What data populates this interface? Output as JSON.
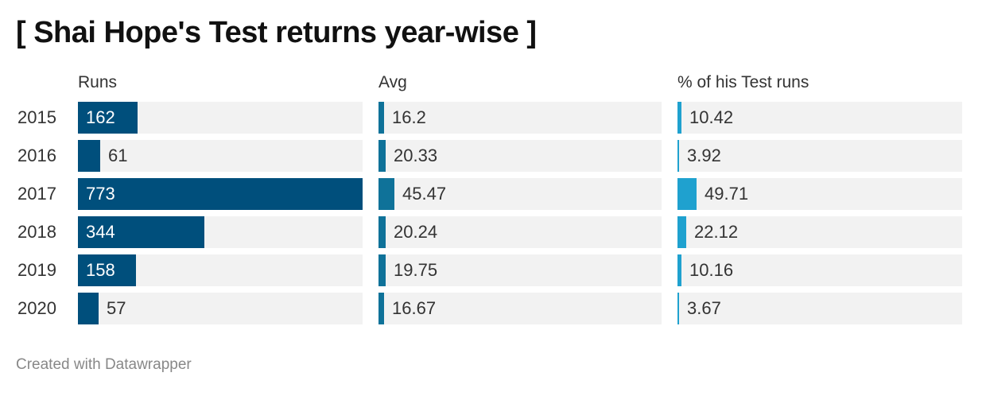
{
  "title": "[ Shai Hope's Test returns year-wise ]",
  "footer": "Created with Datawrapper",
  "colors": {
    "runs": "#004f7c",
    "avg": "#0f7299",
    "pct": "#1fa1cf",
    "track": "#f2f2f2"
  },
  "chart_data": {
    "type": "bar",
    "title": "[ Shai Hope's Test returns year-wise ]",
    "categories": [
      "2015",
      "2016",
      "2017",
      "2018",
      "2019",
      "2020"
    ],
    "series": [
      {
        "name": "Runs",
        "values": [
          162,
          61,
          773,
          344,
          158,
          57
        ],
        "labels": [
          "162",
          "61",
          "773",
          "344",
          "158",
          "57"
        ],
        "max": 773
      },
      {
        "name": "Avg",
        "values": [
          16.2,
          20.33,
          45.47,
          20.24,
          19.75,
          16.67
        ],
        "labels": [
          "16.2",
          "20.33",
          "45.47",
          "20.24",
          "19.75",
          "16.67"
        ],
        "max": 773
      },
      {
        "name": "% of his Test runs",
        "values": [
          10.42,
          3.92,
          49.71,
          22.12,
          10.16,
          3.67
        ],
        "labels": [
          "10.42",
          "3.92",
          "49.71",
          "22.12",
          "10.16",
          "3.67"
        ],
        "max": 773
      }
    ]
  }
}
